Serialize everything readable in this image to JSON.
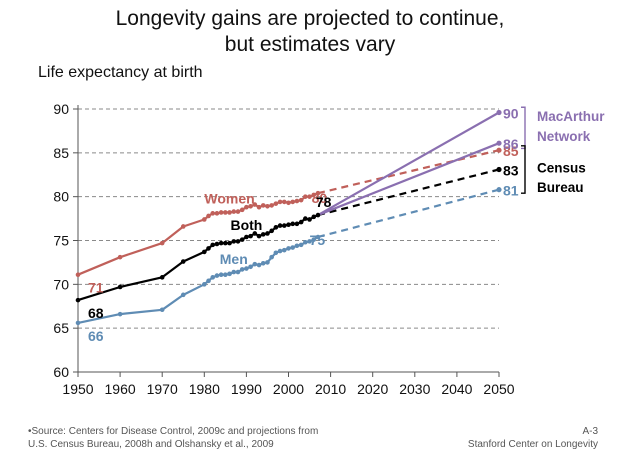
{
  "chart_data": {
    "type": "line",
    "title": "Longevity gains are projected to continue, but estimates vary",
    "title_lines": [
      "Longevity gains are projected to continue,",
      "but estimates vary"
    ],
    "ylabel": "Life expectancy at birth",
    "xlabel": "",
    "xlim": [
      1950,
      2050
    ],
    "ylim": [
      60,
      90
    ],
    "x_ticks": [
      "1950",
      "1960",
      "1970",
      "1980",
      "1990",
      "2000",
      "2010",
      "2020",
      "2030",
      "2040",
      "2050"
    ],
    "y_ticks": [
      "60",
      "65",
      "70",
      "75",
      "80",
      "85",
      "90"
    ],
    "grid": "horizontal dashed",
    "series": [
      {
        "name": "Women",
        "label": "Women",
        "color": "#c0605a",
        "x": [
          1950,
          1960,
          1970,
          1975,
          1980,
          1981,
          1982,
          1983,
          1984,
          1985,
          1986,
          1987,
          1988,
          1989,
          1990,
          1991,
          1992,
          1993,
          1994,
          1995,
          1996,
          1997,
          1998,
          1999,
          2000,
          2001,
          2002,
          2003,
          2004,
          2005,
          2006,
          2007
        ],
        "y": [
          71.1,
          73.1,
          74.7,
          76.6,
          77.4,
          77.8,
          78.1,
          78.1,
          78.2,
          78.2,
          78.2,
          78.3,
          78.3,
          78.5,
          78.8,
          78.9,
          79.1,
          78.8,
          79.0,
          78.9,
          79.0,
          79.2,
          79.4,
          79.4,
          79.3,
          79.4,
          79.5,
          79.6,
          80.0,
          80.0,
          80.2,
          80.4
        ],
        "start_label": "71",
        "end_label": "80"
      },
      {
        "name": "Both",
        "label": "Both",
        "color": "#000000",
        "x": [
          1950,
          1960,
          1970,
          1975,
          1980,
          1981,
          1982,
          1983,
          1984,
          1985,
          1986,
          1987,
          1988,
          1989,
          1990,
          1991,
          1992,
          1993,
          1994,
          1995,
          1996,
          1997,
          1998,
          1999,
          2000,
          2001,
          2002,
          2003,
          2004,
          2005,
          2006,
          2007
        ],
        "y": [
          68.2,
          69.7,
          70.8,
          72.6,
          73.7,
          74.1,
          74.5,
          74.6,
          74.7,
          74.7,
          74.7,
          74.9,
          74.9,
          75.1,
          75.4,
          75.5,
          75.8,
          75.5,
          75.7,
          75.8,
          76.1,
          76.5,
          76.7,
          76.7,
          76.8,
          76.9,
          76.9,
          77.1,
          77.5,
          77.4,
          77.7,
          77.9
        ],
        "start_label": "68",
        "end_label": "78"
      },
      {
        "name": "Men",
        "label": "Men",
        "color": "#5f8cb4",
        "x": [
          1950,
          1960,
          1970,
          1975,
          1980,
          1981,
          1982,
          1983,
          1984,
          1985,
          1986,
          1987,
          1988,
          1989,
          1990,
          1991,
          1992,
          1993,
          1994,
          1995,
          1996,
          1997,
          1998,
          1999,
          2000,
          2001,
          2002,
          2003,
          2004,
          2005,
          2006,
          2007
        ],
        "y": [
          65.6,
          66.6,
          67.1,
          68.8,
          70.0,
          70.4,
          70.8,
          71.0,
          71.1,
          71.1,
          71.2,
          71.4,
          71.4,
          71.7,
          71.8,
          72.0,
          72.3,
          72.2,
          72.4,
          72.5,
          73.1,
          73.6,
          73.8,
          73.9,
          74.1,
          74.2,
          74.4,
          74.5,
          74.8,
          74.9,
          75.1,
          75.4
        ],
        "start_label": "66",
        "end_label": "75"
      }
    ],
    "projections": [
      {
        "name": "Census Bureau - Women",
        "group": "Census Bureau",
        "color": "#c0605a",
        "dashed": true,
        "x": [
          2007,
          2050
        ],
        "y": [
          80.4,
          85.3
        ],
        "label": "85"
      },
      {
        "name": "Census Bureau - Both",
        "group": "Census Bureau",
        "color": "#000000",
        "dashed": true,
        "x": [
          2007,
          2050
        ],
        "y": [
          77.9,
          83.1
        ],
        "label": "83"
      },
      {
        "name": "Census Bureau - Men",
        "group": "Census Bureau",
        "color": "#5f8cb4",
        "dashed": true,
        "x": [
          2007,
          2050
        ],
        "y": [
          75.4,
          80.8
        ],
        "label": "81"
      },
      {
        "name": "MacArthur Network - Women",
        "group": "MacArthur Network",
        "color": "#8a6fb0",
        "dashed": false,
        "x": [
          2007,
          2050
        ],
        "y": [
          77.9,
          89.6
        ],
        "label": "90"
      },
      {
        "name": "MacArthur Network - Men",
        "group": "MacArthur Network",
        "color": "#8a6fb0",
        "dashed": false,
        "x": [
          2007,
          2050
        ],
        "y": [
          77.9,
          86.1
        ],
        "label": "86"
      }
    ],
    "bracket_labels": [
      {
        "lines": [
          "MacArthur",
          "Network"
        ],
        "color": "#8a6fb0"
      },
      {
        "lines": [
          "Census",
          "Bureau"
        ],
        "color": "#000000"
      }
    ]
  },
  "footer": {
    "source_lines": [
      "•Source: Centers for Disease Control, 2009c and projections from",
      "U.S. Census Bureau, 2008h and Olshansky et al., 2009"
    ],
    "slide_id": "A-3",
    "org": "Stanford Center on Longevity"
  }
}
